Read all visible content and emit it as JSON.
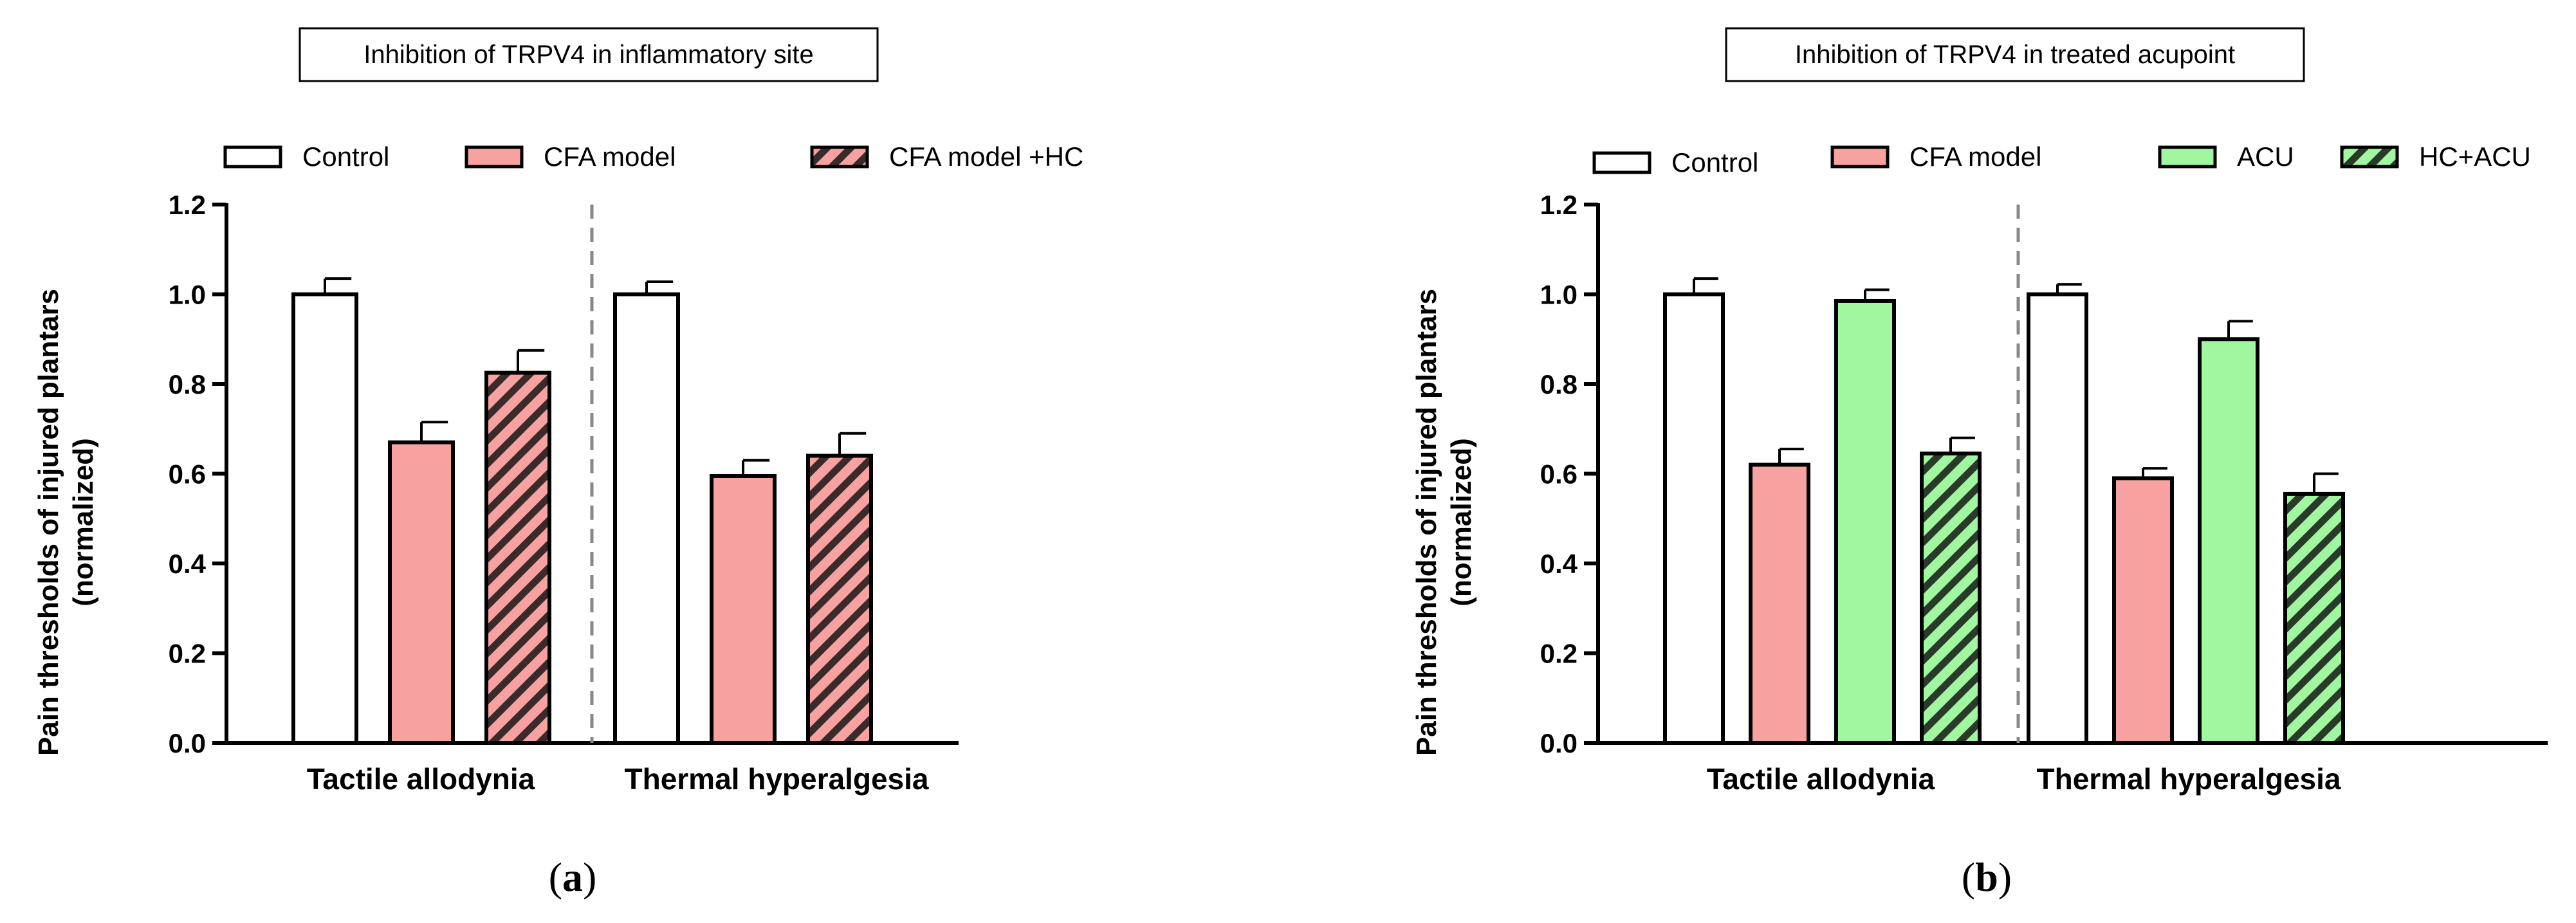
{
  "colors": {
    "control": "#ffffff",
    "cfa": "#f7a1a1",
    "acu": "#a0f7a0",
    "stroke": "#000000",
    "divider": "#888888"
  },
  "chart_data": [
    {
      "type": "bar",
      "panel_label": {
        "open": "(",
        "letter": "a",
        "close": ")"
      },
      "title": "Inhibition of TRPV4 in inflammatory site",
      "ylabel_line1": "Pain thresholds of  injured plantars",
      "ylabel_line2": "(normalized)",
      "ylim": [
        0,
        1.2
      ],
      "yticks": [
        "0.0",
        "0.2",
        "0.4",
        "0.6",
        "0.8",
        "1.0",
        "1.2"
      ],
      "categories": [
        "Tactile allodynia",
        "Thermal hyperalgesia"
      ],
      "series": [
        {
          "name": "Control",
          "fill": "control",
          "hatched": false,
          "values": [
            1.0,
            1.0
          ],
          "errors": [
            0.035,
            0.028
          ]
        },
        {
          "name": "CFA model",
          "fill": "cfa",
          "hatched": false,
          "values": [
            0.67,
            0.595
          ],
          "errors": [
            0.045,
            0.035
          ]
        },
        {
          "name": "CFA model +HC",
          "fill": "cfa",
          "hatched": true,
          "values": [
            0.825,
            0.64
          ],
          "errors": [
            0.05,
            0.05
          ]
        }
      ]
    },
    {
      "type": "bar",
      "panel_label": {
        "open": "(",
        "letter": "b",
        "close": ")"
      },
      "title": "Inhibition of TRPV4 in treated acupoint",
      "ylabel_line1": "Pain thresholds of injured plantars",
      "ylabel_line2": "(normalized)",
      "ylim": [
        0,
        1.2
      ],
      "yticks": [
        "0.0",
        "0.2",
        "0.4",
        "0.6",
        "0.8",
        "1.0",
        "1.2"
      ],
      "categories": [
        "Tactile allodynia",
        "Thermal hyperalgesia"
      ],
      "series": [
        {
          "name": "Control",
          "fill": "control",
          "hatched": false,
          "values": [
            1.0,
            1.0
          ],
          "errors": [
            0.035,
            0.022
          ]
        },
        {
          "name": "CFA model",
          "fill": "cfa",
          "hatched": false,
          "values": [
            0.62,
            0.59
          ],
          "errors": [
            0.035,
            0.022
          ]
        },
        {
          "name": "ACU",
          "fill": "acu",
          "hatched": false,
          "values": [
            0.985,
            0.9
          ],
          "errors": [
            0.025,
            0.04
          ]
        },
        {
          "name": "HC+ACU",
          "fill": "acu",
          "hatched": true,
          "values": [
            0.645,
            0.555
          ],
          "errors": [
            0.035,
            0.045
          ]
        }
      ]
    }
  ]
}
